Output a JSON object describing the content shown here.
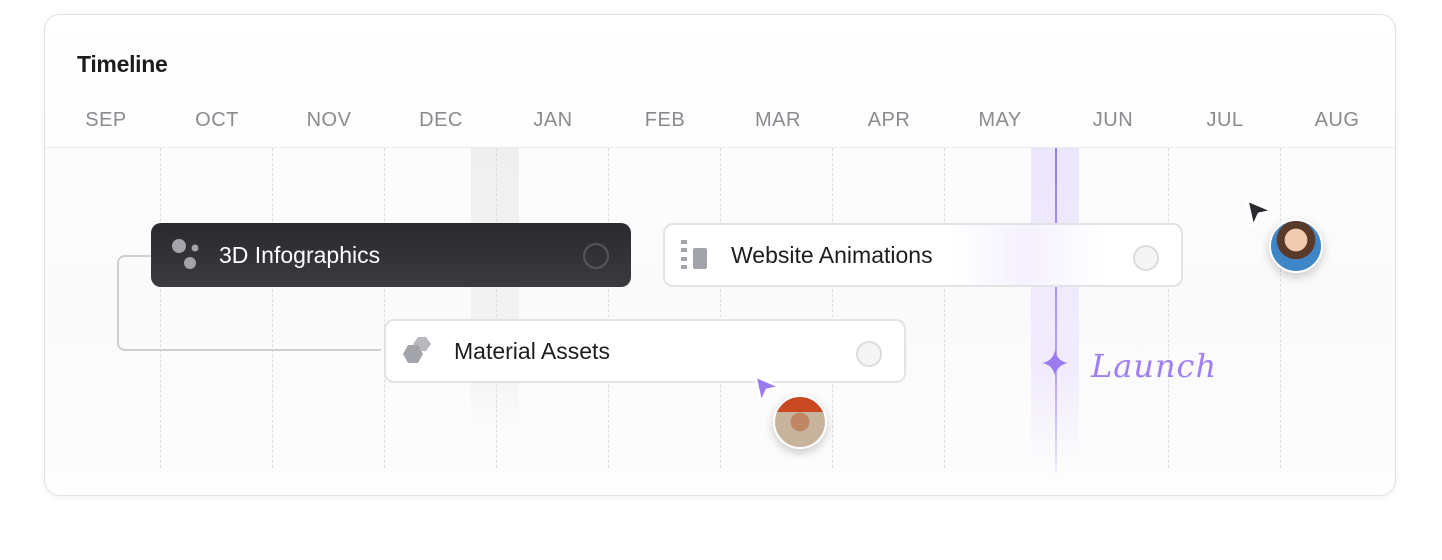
{
  "timeline": {
    "title": "Timeline",
    "months": [
      "SEP",
      "OCT",
      "NOV",
      "DEC",
      "JAN",
      "FEB",
      "MAR",
      "APR",
      "MAY",
      "JUN",
      "JUL",
      "AUG"
    ],
    "tasks": [
      {
        "label": "3D Infographics",
        "icon": "dots-icon",
        "style": "dark"
      },
      {
        "label": "Website Animations",
        "icon": "bars-icon",
        "style": "light"
      },
      {
        "label": "Material Assets",
        "icon": "hexagons-icon",
        "style": "light"
      }
    ],
    "milestone": {
      "label": "Launch",
      "icon": "sparkle-icon",
      "color": "#9b7cf0"
    },
    "cursors": [
      {
        "color": "#2a2a2e",
        "avatar": "woman-avatar"
      },
      {
        "color": "#9b7cf0",
        "avatar": "man-avatar"
      }
    ]
  }
}
